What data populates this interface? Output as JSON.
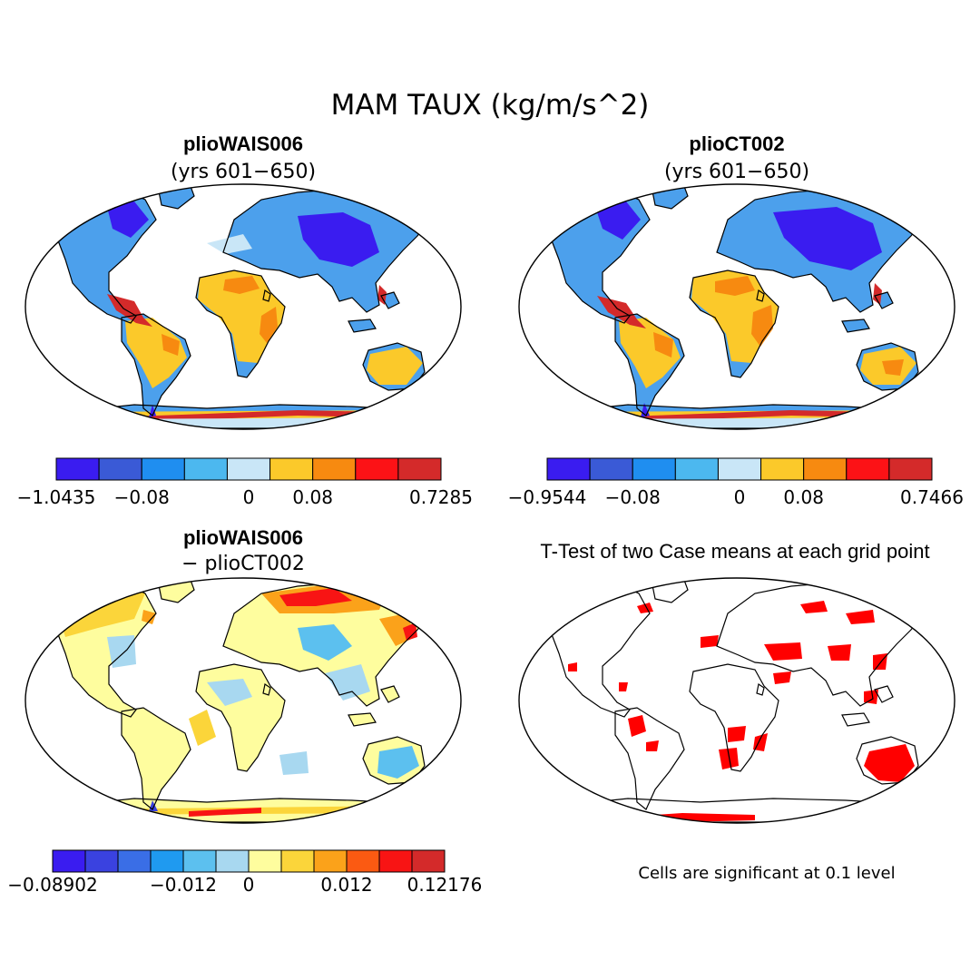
{
  "title": "MAM TAUX (kg/m/s^2)",
  "panels": [
    {
      "id": "p1",
      "heading": "plioWAIS006",
      "subheading": "(yrs 601−650)",
      "colorbar": {
        "colors": [
          "#3a1cf0",
          "#3a5ad6",
          "#1f8ef0",
          "#4cb8ef",
          "#c9e6f7",
          "#fbc92a",
          "#f78a10",
          "#fc1216",
          "#d42a2a"
        ],
        "tick_labels": [
          "−1.0435",
          "−0.08",
          "0",
          "0.08",
          "0.7285"
        ]
      }
    },
    {
      "id": "p2",
      "heading": "plioCT002",
      "subheading": "(yrs 601−650)",
      "colorbar": {
        "colors": [
          "#3a1cf0",
          "#3a5ad6",
          "#1f8ef0",
          "#4cb8ef",
          "#c9e6f7",
          "#fbc92a",
          "#f78a10",
          "#fc1216",
          "#d42a2a"
        ],
        "tick_labels": [
          "−0.9544",
          "−0.08",
          "0",
          "0.08",
          "0.7466"
        ]
      }
    },
    {
      "id": "p3",
      "heading": "plioWAIS006",
      "subheading": "− plioCT002",
      "colorbar": {
        "colors": [
          "#3a1cf0",
          "#3a42e0",
          "#3a6ee6",
          "#1f9af0",
          "#5cc0ef",
          "#a8d8f0",
          "#fefd9e",
          "#fbd53a",
          "#fba21a",
          "#fb5a12",
          "#f81414",
          "#d42a2a"
        ],
        "tick_labels": [
          "−0.08902",
          "−0.012",
          "0",
          "0.012",
          "0.12176"
        ]
      }
    },
    {
      "id": "p4",
      "heading": "T-Test of two Case means at each grid point",
      "note": "Cells are significant at 0.1 level",
      "sig_color": "#ff0000"
    }
  ]
}
